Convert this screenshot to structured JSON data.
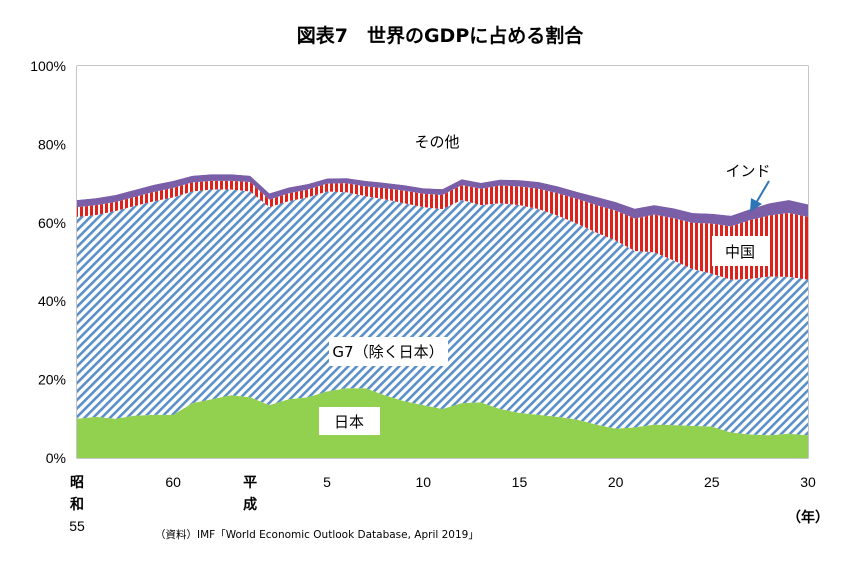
{
  "title": "図表7　世界のGDPに占める割合",
  "source": "（資料）IMF「World Economic Outlook Database, April 2019」",
  "unit_label": "（年）",
  "chart_data": {
    "type": "area",
    "stacked": true,
    "ylim": [
      0,
      100
    ],
    "y_ticks": [
      "0%",
      "20%",
      "40%",
      "60%",
      "80%",
      "100%"
    ],
    "x": [
      1980,
      1981,
      1982,
      1983,
      1984,
      1985,
      1986,
      1987,
      1988,
      1989,
      1990,
      1991,
      1992,
      1993,
      1994,
      1995,
      1996,
      1997,
      1998,
      1999,
      2000,
      2001,
      2002,
      2003,
      2004,
      2005,
      2006,
      2007,
      2008,
      2009,
      2010,
      2011,
      2012,
      2013,
      2014,
      2015,
      2016,
      2017,
      2018
    ],
    "x_ticks": [
      {
        "x": 1980,
        "lines": [
          "昭",
          "和",
          "55"
        ]
      },
      {
        "x": 1985,
        "lines": [
          "60"
        ]
      },
      {
        "x": 1989,
        "lines": [
          "平",
          "成"
        ]
      },
      {
        "x": 1993,
        "lines": [
          "5"
        ]
      },
      {
        "x": 1998,
        "lines": [
          "10"
        ]
      },
      {
        "x": 2003,
        "lines": [
          "15"
        ]
      },
      {
        "x": 2008,
        "lines": [
          "20"
        ]
      },
      {
        "x": 2013,
        "lines": [
          "25"
        ]
      },
      {
        "x": 2018,
        "lines": [
          "30"
        ]
      }
    ],
    "series": [
      {
        "name": "日本",
        "color": "#92d050",
        "values": [
          10.0,
          10.5,
          10.0,
          10.8,
          11.0,
          11.0,
          14.0,
          15.0,
          16.0,
          15.5,
          13.5,
          15.0,
          15.5,
          17.0,
          17.8,
          17.8,
          16.0,
          14.5,
          13.5,
          12.5,
          14.0,
          14.2,
          12.5,
          11.5,
          11.0,
          10.5,
          9.8,
          8.5,
          7.5,
          7.8,
          8.5,
          8.4,
          8.2,
          8.0,
          6.5,
          6.0,
          5.8,
          6.2,
          5.8
        ]
      },
      {
        "name": "G7（除く日本）",
        "color": "#5b8fc7",
        "values": [
          51.5,
          51.5,
          53.0,
          53.5,
          54.5,
          55.5,
          54.0,
          53.5,
          52.5,
          52.5,
          50.5,
          50.5,
          51.0,
          51.0,
          50.0,
          49.0,
          50.0,
          50.5,
          50.5,
          51.0,
          51.8,
          50.3,
          52.5,
          53.0,
          52.5,
          51.3,
          50.0,
          49.0,
          48.0,
          45.0,
          44.0,
          42.0,
          40.0,
          39.0,
          39.0,
          39.7,
          40.5,
          40.0,
          39.7
        ]
      },
      {
        "name": "中国",
        "color": "#e0201b",
        "values": [
          2.5,
          2.5,
          2.3,
          2.3,
          2.4,
          2.4,
          2.3,
          2.2,
          2.2,
          2.4,
          1.9,
          2.0,
          2.0,
          2.0,
          2.3,
          2.5,
          2.8,
          3.2,
          3.4,
          3.6,
          3.8,
          4.2,
          4.5,
          4.8,
          5.2,
          5.7,
          6.3,
          7.0,
          7.6,
          8.3,
          9.6,
          10.8,
          11.8,
          12.8,
          13.6,
          15.0,
          15.6,
          16.3,
          16.0
        ]
      },
      {
        "name": "インド",
        "color": "#7a5fa8",
        "values": [
          1.8,
          1.8,
          1.8,
          1.8,
          1.8,
          1.8,
          1.7,
          1.7,
          1.7,
          1.6,
          1.6,
          1.5,
          1.4,
          1.3,
          1.3,
          1.4,
          1.4,
          1.4,
          1.4,
          1.5,
          1.5,
          1.5,
          1.5,
          1.6,
          1.7,
          1.8,
          1.8,
          2.1,
          2.2,
          2.5,
          2.4,
          2.5,
          2.5,
          2.5,
          2.7,
          2.8,
          3.1,
          3.3,
          3.2
        ]
      },
      {
        "name": "その他",
        "color": "#ffffff",
        "values": [
          34.2,
          33.7,
          32.9,
          31.6,
          30.3,
          29.3,
          28.0,
          27.6,
          27.6,
          28.0,
          32.5,
          31.0,
          30.1,
          28.7,
          28.6,
          29.3,
          29.8,
          30.4,
          31.2,
          31.4,
          28.9,
          29.8,
          29.0,
          29.1,
          29.6,
          30.7,
          32.1,
          33.4,
          34.7,
          36.4,
          35.5,
          36.3,
          37.5,
          37.7,
          38.2,
          36.5,
          35.0,
          34.2,
          35.3
        ]
      }
    ]
  }
}
